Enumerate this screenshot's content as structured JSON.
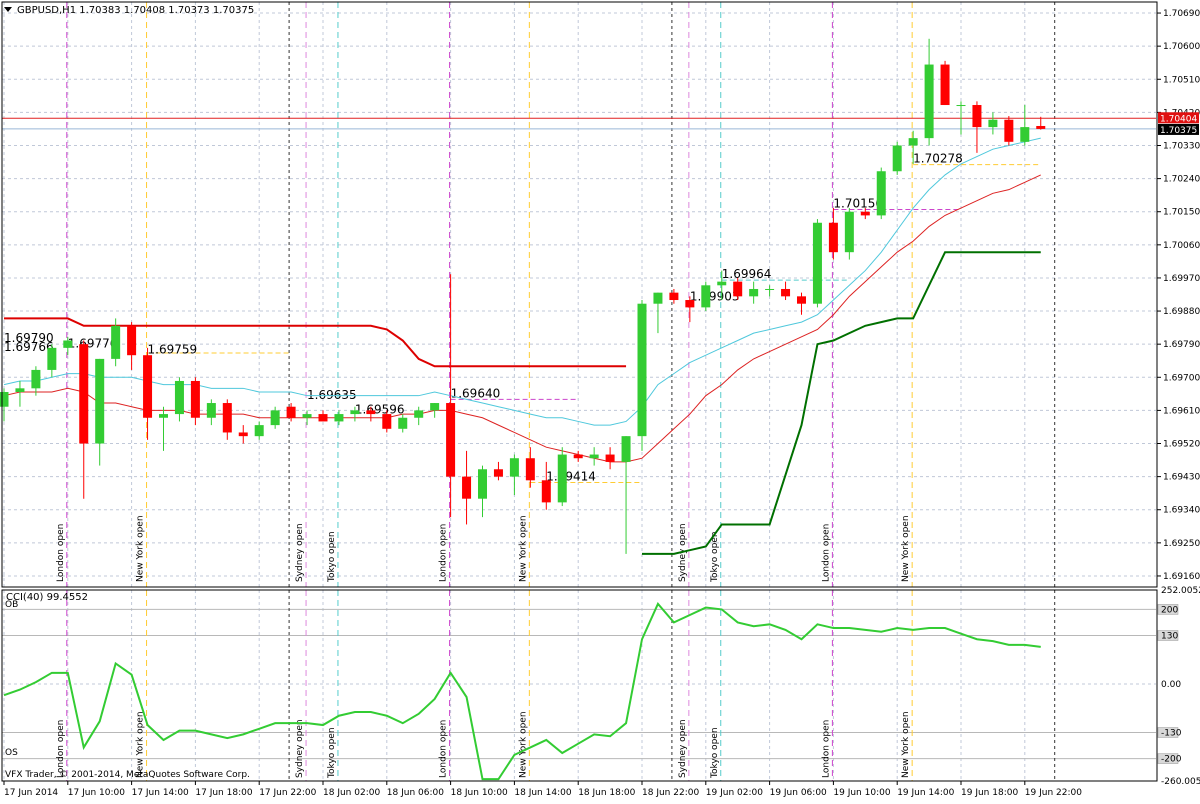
{
  "symbol_header": "GBPUSD,H1  1.70383 1.70408 1.70373 1.70375",
  "copyright": "VFX Trader, © 2001-2014, MetaQuotes Software Corp.",
  "price_axis": {
    "ticks": [
      "1.70690",
      "1.70600",
      "1.70510",
      "1.70420",
      "1.70330",
      "1.70240",
      "1.70150",
      "1.70060",
      "1.69970",
      "1.69880",
      "1.69790",
      "1.69700",
      "1.69610",
      "1.69520",
      "1.69430",
      "1.69340",
      "1.69250",
      "1.69160"
    ],
    "tick_values": [
      1.7069,
      1.706,
      1.7051,
      1.7042,
      1.7033,
      1.7024,
      1.7015,
      1.7006,
      1.6997,
      1.6988,
      1.6979,
      1.697,
      1.6961,
      1.6952,
      1.6943,
      1.6934,
      1.6925,
      1.6916
    ],
    "current_bid_label": "1.70404",
    "current_price_label": "1.70375",
    "current_bid": 1.70404,
    "current_price": 1.70375
  },
  "time_axis": [
    "17 Jun 2014",
    "17 Jun 10:00",
    "17 Jun 14:00",
    "17 Jun 18:00",
    "17 Jun 22:00",
    "18 Jun 02:00",
    "18 Jun 06:00",
    "18 Jun 10:00",
    "18 Jun 14:00",
    "18 Jun 18:00",
    "18 Jun 22:00",
    "19 Jun 02:00",
    "19 Jun 06:00",
    "19 Jun 10:00",
    "19 Jun 14:00",
    "19 Jun 18:00",
    "19 Jun 22:00"
  ],
  "cci_indicator": {
    "header": "CCI(40) 99.4552",
    "ob_label": "OB",
    "os_label": "OS",
    "axis_ticks": [
      "252.0052",
      "200",
      "130",
      "0.00",
      "-130",
      "-200",
      "-260.0052"
    ],
    "axis_values": [
      252.0052,
      200,
      130,
      0,
      -130,
      -200,
      -260.0052
    ],
    "boxed_levels": [
      "200",
      "130",
      "-130",
      "-200"
    ]
  },
  "session_labels": {
    "london": "London open",
    "new_york": "New York open",
    "sydney": "Sydney open",
    "tokyo": "Tokyo open"
  },
  "sessions": [
    {
      "type": "london",
      "bar": 4
    },
    {
      "type": "new_york",
      "bar": 9
    },
    {
      "type": "sydney",
      "bar": 19
    },
    {
      "type": "tokyo",
      "bar": 21
    },
    {
      "type": "london",
      "bar": 28
    },
    {
      "type": "new_york",
      "bar": 33
    },
    {
      "type": "sydney",
      "bar": 43
    },
    {
      "type": "tokyo",
      "bar": 45
    },
    {
      "type": "london",
      "bar": 52
    },
    {
      "type": "new_york",
      "bar": 57
    }
  ],
  "day_separators_bars": [
    18,
    42,
    66
  ],
  "level_labels": [
    {
      "text": "1.69790",
      "bar": 0,
      "price": 1.6979
    },
    {
      "text": "1.69766",
      "bar": 0,
      "price": 1.69766
    },
    {
      "text": "1.69776",
      "bar": 4,
      "price": 1.69776
    },
    {
      "text": "1.69759",
      "bar": 9,
      "price": 1.69759
    },
    {
      "text": "1.69635",
      "bar": 19,
      "price": 1.69635
    },
    {
      "text": "1.69596",
      "bar": 22,
      "price": 1.69596
    },
    {
      "text": "1.69640",
      "bar": 28,
      "price": 1.6964
    },
    {
      "text": "1.69414",
      "bar": 34,
      "price": 1.69414
    },
    {
      "text": "1.69903",
      "bar": 43,
      "price": 1.69903
    },
    {
      "text": "1.69964",
      "bar": 45,
      "price": 1.69964
    },
    {
      "text": "1.70156",
      "bar": 52,
      "price": 1.70156
    },
    {
      "text": "1.70278",
      "bar": 57,
      "price": 1.70278
    }
  ],
  "colors": {
    "bull": "#33cc33",
    "bear": "#ff0000",
    "grid": "#c0c8d8",
    "ma_fast": "#4fc8dc",
    "ma_slow": "#dd2222",
    "channel_top": "#dd0000",
    "trail_stop": "#007000",
    "cci_line": "#33cc33",
    "london": "#cc44cc",
    "new_york": "#ffcc33",
    "sydney": "#dd88dd",
    "tokyo": "#55cccc",
    "day_sep": "#333333"
  },
  "chart_data": {
    "type": "candlestick",
    "symbol": "GBPUSD",
    "timeframe": "H1",
    "ohlc": [
      [
        1.6962,
        1.6967,
        1.6958,
        1.6966
      ],
      [
        1.6966,
        1.6969,
        1.6962,
        1.6967
      ],
      [
        1.6967,
        1.6973,
        1.6965,
        1.6972
      ],
      [
        1.6972,
        1.6979,
        1.697,
        1.6978
      ],
      [
        1.6978,
        1.6981,
        1.6976,
        1.698
      ],
      [
        1.6979,
        1.698,
        1.6937,
        1.6952
      ],
      [
        1.6952,
        1.6975,
        1.6946,
        1.6975
      ],
      [
        1.6975,
        1.6986,
        1.6973,
        1.6984
      ],
      [
        1.6984,
        1.6985,
        1.6972,
        1.6976
      ],
      [
        1.6976,
        1.6978,
        1.6953,
        1.6959
      ],
      [
        1.6959,
        1.6962,
        1.695,
        1.696
      ],
      [
        1.696,
        1.697,
        1.6958,
        1.6969
      ],
      [
        1.6969,
        1.697,
        1.6957,
        1.6959
      ],
      [
        1.6959,
        1.6964,
        1.6957,
        1.6963
      ],
      [
        1.6963,
        1.6964,
        1.6953,
        1.6955
      ],
      [
        1.6955,
        1.6957,
        1.6952,
        1.6954
      ],
      [
        1.6954,
        1.6958,
        1.6953,
        1.6957
      ],
      [
        1.6957,
        1.6962,
        1.6956,
        1.6961
      ],
      [
        1.6962,
        1.6963,
        1.6958,
        1.6959
      ],
      [
        1.6959,
        1.6961,
        1.6957,
        1.696
      ],
      [
        1.696,
        1.6961,
        1.6958,
        1.6958
      ],
      [
        1.6958,
        1.6961,
        1.6957,
        1.696
      ],
      [
        1.696,
        1.6962,
        1.6958,
        1.6961
      ],
      [
        1.6961,
        1.6962,
        1.6958,
        1.696
      ],
      [
        1.696,
        1.6961,
        1.6955,
        1.6956
      ],
      [
        1.6956,
        1.696,
        1.6955,
        1.6959
      ],
      [
        1.6959,
        1.6962,
        1.6957,
        1.6961
      ],
      [
        1.6961,
        1.6963,
        1.6959,
        1.6963
      ],
      [
        1.6963,
        1.6998,
        1.6932,
        1.6943
      ],
      [
        1.6943,
        1.695,
        1.693,
        1.6937
      ],
      [
        1.6937,
        1.6946,
        1.6932,
        1.6945
      ],
      [
        1.6945,
        1.6947,
        1.6942,
        1.6943
      ],
      [
        1.6943,
        1.6949,
        1.6938,
        1.6948
      ],
      [
        1.6948,
        1.6951,
        1.694,
        1.6942
      ],
      [
        1.6942,
        1.6947,
        1.6934,
        1.6936
      ],
      [
        1.6936,
        1.6951,
        1.6935,
        1.6949
      ],
      [
        1.6949,
        1.695,
        1.6947,
        1.6948
      ],
      [
        1.6948,
        1.6951,
        1.6946,
        1.6949
      ],
      [
        1.6949,
        1.6951,
        1.6945,
        1.6947
      ],
      [
        1.6947,
        1.6954,
        1.6922,
        1.6954
      ],
      [
        1.6954,
        1.6991,
        1.695,
        1.699
      ],
      [
        1.699,
        1.6993,
        1.6982,
        1.6993
      ],
      [
        1.6993,
        1.6994,
        1.699,
        1.6991
      ],
      [
        1.6991,
        1.6992,
        1.6985,
        1.6989
      ],
      [
        1.6989,
        1.6996,
        1.6988,
        1.6995
      ],
      [
        1.6995,
        1.6999,
        1.6991,
        1.6996
      ],
      [
        1.6996,
        1.6997,
        1.6991,
        1.6992
      ],
      [
        1.6992,
        1.6996,
        1.699,
        1.6994
      ],
      [
        1.6994,
        1.6995,
        1.6992,
        1.6994
      ],
      [
        1.6994,
        1.6996,
        1.6991,
        1.6992
      ],
      [
        1.6992,
        1.6993,
        1.6987,
        1.699
      ],
      [
        1.699,
        1.7013,
        1.6989,
        1.7012
      ],
      [
        1.7012,
        1.7016,
        1.7002,
        1.7004
      ],
      [
        1.7004,
        1.7016,
        1.7002,
        1.7015
      ],
      [
        1.7015,
        1.7016,
        1.7013,
        1.7014
      ],
      [
        1.7014,
        1.7027,
        1.7013,
        1.7026
      ],
      [
        1.7026,
        1.7034,
        1.7025,
        1.7033
      ],
      [
        1.7033,
        1.7037,
        1.7028,
        1.7035
      ],
      [
        1.7035,
        1.7062,
        1.7033,
        1.7055
      ],
      [
        1.7055,
        1.7056,
        1.7044,
        1.7044
      ],
      [
        1.7044,
        1.7045,
        1.7036,
        1.7044
      ],
      [
        1.7044,
        1.7045,
        1.7031,
        1.7038
      ],
      [
        1.7038,
        1.7042,
        1.7036,
        1.704
      ],
      [
        1.704,
        1.7041,
        1.7033,
        1.7034
      ],
      [
        1.7034,
        1.7044,
        1.7033,
        1.7038
      ],
      [
        1.70383,
        1.70408,
        1.70373,
        1.70375
      ]
    ],
    "ma_fast": [
      1.6968,
      1.6969,
      1.6969,
      1.697,
      1.6971,
      1.6971,
      1.697,
      1.697,
      1.697,
      1.6969,
      1.6968,
      1.6968,
      1.6968,
      1.6967,
      1.6967,
      1.6967,
      1.6966,
      1.6966,
      1.6966,
      1.6965,
      1.6965,
      1.6965,
      1.6965,
      1.6965,
      1.6965,
      1.6965,
      1.6965,
      1.6966,
      1.6965,
      1.6964,
      1.6963,
      1.6962,
      1.6961,
      1.696,
      1.6959,
      1.6959,
      1.6958,
      1.6957,
      1.6957,
      1.6958,
      1.6962,
      1.6968,
      1.6971,
      1.6974,
      1.6976,
      1.6978,
      1.698,
      1.6982,
      1.6983,
      1.6984,
      1.6985,
      1.6987,
      1.6991,
      1.6995,
      1.6999,
      1.7004,
      1.701,
      1.7016,
      1.7021,
      1.7025,
      1.7028,
      1.703,
      1.7032,
      1.7033,
      1.7034,
      1.7035
    ],
    "ma_slow": [
      1.6965,
      1.6966,
      1.6966,
      1.6966,
      1.6967,
      1.6966,
      1.6963,
      1.6963,
      1.6962,
      1.6961,
      1.6961,
      1.6961,
      1.696,
      1.696,
      1.696,
      1.696,
      1.6959,
      1.6959,
      1.6959,
      1.6959,
      1.6959,
      1.6959,
      1.6959,
      1.6959,
      1.6959,
      1.696,
      1.696,
      1.6961,
      1.6961,
      1.696,
      1.6959,
      1.6957,
      1.6955,
      1.6953,
      1.6951,
      1.695,
      1.6949,
      1.6948,
      1.6947,
      1.6947,
      1.6948,
      1.6952,
      1.6956,
      1.696,
      1.6965,
      1.6968,
      1.6972,
      1.6975,
      1.6977,
      1.6979,
      1.6981,
      1.6983,
      1.6987,
      1.6992,
      1.6996,
      1.7,
      1.7004,
      1.7007,
      1.7011,
      1.7014,
      1.7016,
      1.7018,
      1.702,
      1.7021,
      1.7023,
      1.7025
    ],
    "channel_top": [
      {
        "bar": 0,
        "price": 1.6986
      },
      {
        "bar": 4,
        "price": 1.6986
      },
      {
        "bar": 5,
        "price": 1.6984
      },
      {
        "bar": 23,
        "price": 1.6984
      },
      {
        "bar": 24,
        "price": 1.6983
      },
      {
        "bar": 25,
        "price": 1.698
      },
      {
        "bar": 26,
        "price": 1.6975
      },
      {
        "bar": 27,
        "price": 1.6973
      },
      {
        "bar": 39,
        "price": 1.6973
      }
    ],
    "trail_stop": [
      {
        "bar": 40,
        "price": 1.6922
      },
      {
        "bar": 42,
        "price": 1.6922
      },
      {
        "bar": 43,
        "price": 1.6923
      },
      {
        "bar": 44,
        "price": 1.6924
      },
      {
        "bar": 45,
        "price": 1.693
      },
      {
        "bar": 48,
        "price": 1.693
      },
      {
        "bar": 50,
        "price": 1.6957
      },
      {
        "bar": 51,
        "price": 1.6979
      },
      {
        "bar": 52,
        "price": 1.698
      },
      {
        "bar": 53,
        "price": 1.6982
      },
      {
        "bar": 54,
        "price": 1.6984
      },
      {
        "bar": 56,
        "price": 1.6986
      },
      {
        "bar": 57,
        "price": 1.6986
      },
      {
        "bar": 59,
        "price": 1.7004
      },
      {
        "bar": 65,
        "price": 1.7004
      }
    ],
    "level_lines": [
      {
        "price": 1.69766,
        "from": 9,
        "to": 18,
        "color": "#ffcc33"
      },
      {
        "price": 1.6964,
        "from": 28,
        "to": 36,
        "color": "#cc44cc"
      },
      {
        "price": 1.69414,
        "from": 33,
        "to": 40,
        "color": "#ffcc33"
      },
      {
        "price": 1.69964,
        "from": 45,
        "to": 53,
        "color": "#55cccc"
      },
      {
        "price": 1.70156,
        "from": 52,
        "to": 60,
        "color": "#cc44cc"
      },
      {
        "price": 1.70278,
        "from": 57,
        "to": 65,
        "color": "#ffcc33"
      }
    ],
    "cci": [
      -30,
      -15,
      5,
      30,
      30,
      -170,
      -100,
      55,
      25,
      -110,
      -150,
      -125,
      -125,
      -135,
      -145,
      -135,
      -120,
      -105,
      -105,
      -105,
      -110,
      -85,
      -75,
      -75,
      -85,
      -105,
      -80,
      -40,
      30,
      -35,
      -255,
      -255,
      -190,
      -170,
      -150,
      -185,
      -160,
      -135,
      -140,
      -105,
      120,
      215,
      165,
      185,
      205,
      200,
      165,
      155,
      160,
      145,
      120,
      160,
      150,
      150,
      145,
      140,
      150,
      145,
      150,
      150,
      135,
      120,
      115,
      105,
      105,
      99.4552
    ],
    "cci_ylim": [
      -260.0052,
      252.0052
    ],
    "ylim": [
      1.6913,
      1.7072
    ]
  }
}
